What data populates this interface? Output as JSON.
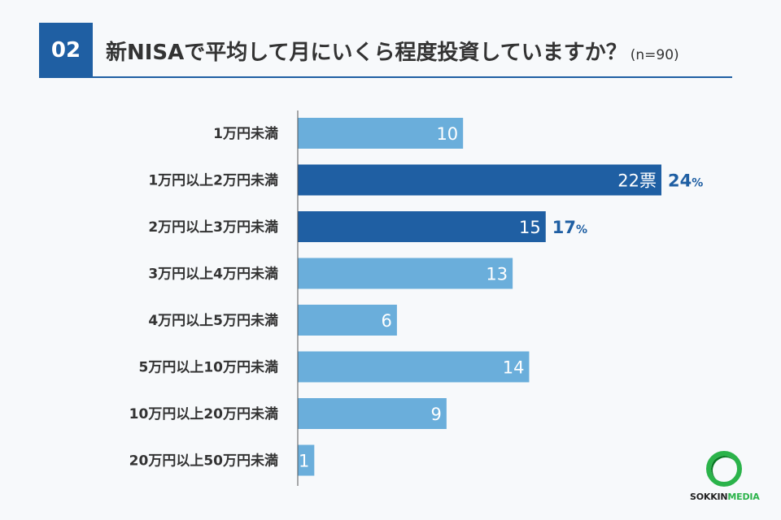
{
  "header": {
    "badge": "02",
    "title": "新NISAで平均して月にいくら程度投資していますか？",
    "sample": "(n=90)"
  },
  "chart_data": {
    "type": "bar",
    "orientation": "horizontal",
    "categories": [
      "1万円未満",
      "1万円以上2万円未満",
      "2万円以上3万円未満",
      "3万円以上4万円未満",
      "4万円以上5万円未満",
      "5万円以上10万円未満",
      "10万円以上20万円未満",
      "20万円以上50万円未満"
    ],
    "values": [
      10,
      22,
      15,
      13,
      6,
      14,
      9,
      1
    ],
    "value_labels": [
      "10",
      "22票",
      "15",
      "13",
      "6",
      "14",
      "9",
      "1"
    ],
    "highlight": [
      false,
      true,
      true,
      false,
      false,
      false,
      false,
      false
    ],
    "percent_labels": [
      "",
      "24",
      "17",
      "",
      "",
      "",
      "",
      ""
    ],
    "percent_sign": "%",
    "colors": {
      "normal": "#6aaedb",
      "highlight": "#1f5fa3"
    },
    "xlim": [
      0,
      22
    ]
  },
  "logo": {
    "text_a": "SOKKIN",
    "text_b": "MEDIA"
  }
}
